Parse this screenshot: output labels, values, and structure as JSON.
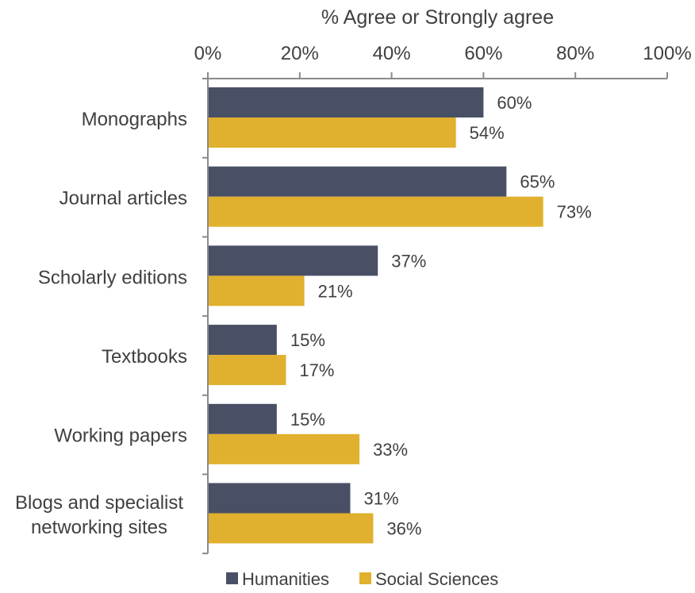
{
  "chart_data": {
    "type": "bar",
    "orientation": "horizontal",
    "title": "% Agree or Strongly agree",
    "xlim": [
      0,
      100
    ],
    "x_ticks": [
      "0%",
      "20%",
      "40%",
      "60%",
      "80%",
      "100%"
    ],
    "x_tick_values": [
      0,
      20,
      40,
      60,
      80,
      100
    ],
    "axis_position": "top",
    "grid": false,
    "legend_position": "bottom",
    "categories": [
      [
        "Monographs"
      ],
      [
        "Journal articles"
      ],
      [
        "Scholarly editions"
      ],
      [
        "Textbooks"
      ],
      [
        "Working papers"
      ],
      [
        "Blogs and specialist",
        "networking sites"
      ]
    ],
    "series": [
      {
        "name": "Humanities",
        "color": "#495066",
        "values": [
          60,
          65,
          37,
          15,
          15,
          31
        ],
        "labels": [
          "60%",
          "65%",
          "37%",
          "15%",
          "15%",
          "31%"
        ]
      },
      {
        "name": "Social Sciences",
        "color": "#e0b02e",
        "values": [
          54,
          73,
          21,
          17,
          33,
          36
        ],
        "labels": [
          "54%",
          "73%",
          "21%",
          "17%",
          "33%",
          "36%"
        ]
      }
    ]
  }
}
